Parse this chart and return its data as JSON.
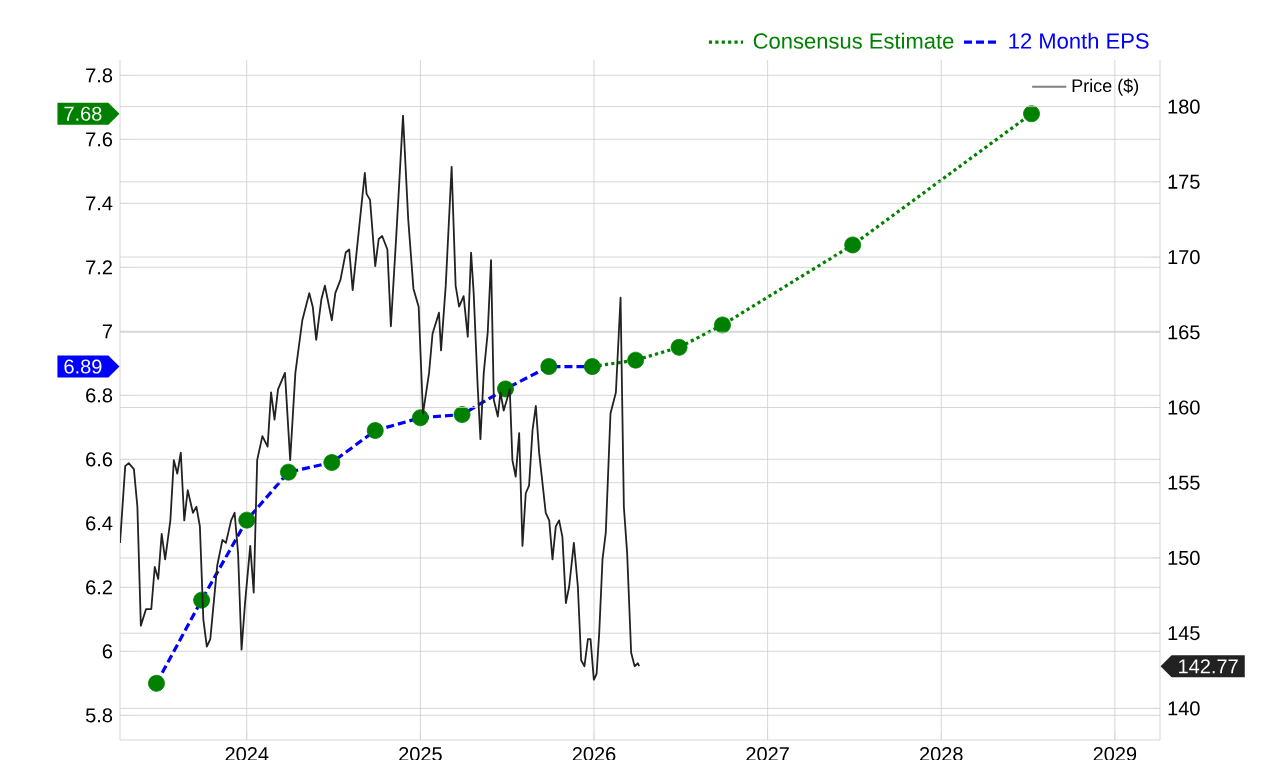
{
  "chart_data": {
    "type": "line",
    "xlim": [
      2023.27,
      2029.26
    ],
    "xticks": [
      2024,
      2025,
      2026,
      2027,
      2028,
      2029
    ],
    "ylim": [
      5.723,
      7.848
    ],
    "yticks": [
      5.8,
      6,
      6.2,
      6.4,
      6.6,
      6.8,
      7,
      7.2,
      7.4,
      7.6,
      7.8
    ],
    "y2lim": [
      137.9,
      183.1
    ],
    "y2ticks": [
      140,
      145,
      150,
      155,
      160,
      165,
      170,
      175,
      180
    ],
    "grid": true,
    "legend": "top right",
    "series": [
      {
        "name": "Consensus Estimate",
        "color": "#008000",
        "line_style": "dotted",
        "marker": "none",
        "x": [
          2025.99,
          2026.24,
          2026.49,
          2026.74,
          2027.49,
          2028.52
        ],
        "values": [
          6.89,
          6.91,
          6.95,
          7.02,
          7.27,
          7.68
        ]
      },
      {
        "name": "12 Month EPS",
        "color": "#0000ff",
        "line_style": "dashed",
        "marker": "none",
        "x": [
          2023.48,
          2023.74,
          2024.0,
          2024.24,
          2024.49,
          2024.74,
          2025.0,
          2025.24,
          2025.49,
          2025.74,
          2025.99
        ],
        "values": [
          5.9,
          6.16,
          6.41,
          6.56,
          6.59,
          6.69,
          6.73,
          6.74,
          6.82,
          6.89,
          6.89
        ]
      },
      {
        "type": "scatter",
        "color": "#008000",
        "marker": "circle",
        "x": [
          2023.48,
          2023.74,
          2024.0,
          2024.24,
          2024.49,
          2024.74,
          2025.0,
          2025.24,
          2025.49,
          2025.74,
          2025.99,
          2026.24,
          2026.49,
          2026.74,
          2027.49,
          2028.52
        ],
        "values": [
          5.9,
          6.16,
          6.41,
          6.56,
          6.59,
          6.69,
          6.73,
          6.74,
          6.82,
          6.89,
          6.89,
          6.91,
          6.95,
          7.02,
          7.27,
          7.68
        ]
      },
      {
        "name": "Price ($)",
        "axis": "y2",
        "color": "#222222",
        "line_style": "solid",
        "marker": "none",
        "x": [
          2023.27,
          2023.3,
          2023.32,
          2023.35,
          2023.37,
          2023.39,
          2023.42,
          2023.45,
          2023.47,
          2023.49,
          2023.51,
          2023.53,
          2023.56,
          2023.58,
          2023.6,
          2023.62,
          2023.64,
          2023.66,
          2023.69,
          2023.71,
          2023.73,
          2023.75,
          2023.77,
          2023.79,
          2023.83,
          2023.86,
          2023.88,
          2023.91,
          2023.93,
          2023.95,
          2023.97,
          2023.99,
          2024.02,
          2024.04,
          2024.06,
          2024.09,
          2024.12,
          2024.14,
          2024.16,
          2024.18,
          2024.22,
          2024.25,
          2024.28,
          2024.32,
          2024.36,
          2024.38,
          2024.4,
          2024.43,
          2024.45,
          2024.49,
          2024.51,
          2024.54,
          2024.57,
          2024.59,
          2024.61,
          2024.68,
          2024.69,
          2024.71,
          2024.74,
          2024.76,
          2024.78,
          2024.81,
          2024.83,
          2024.86,
          2024.9,
          2024.93,
          2024.96,
          2024.99,
          2025.015,
          2025.05,
          2025.07,
          2025.107,
          2025.119,
          2025.146,
          2025.18,
          2025.203,
          2025.223,
          2025.249,
          2025.273,
          2025.292,
          2025.307,
          2025.33,
          2025.346,
          2025.365,
          2025.388,
          2025.407,
          2025.423,
          2025.446,
          2025.461,
          2025.48,
          2025.515,
          2025.53,
          2025.549,
          2025.569,
          2025.588,
          2025.607,
          2025.626,
          2025.646,
          2025.665,
          2025.684,
          2025.722,
          2025.742,
          2025.761,
          2025.78,
          2025.799,
          2025.818,
          2025.838,
          2025.857,
          2025.884,
          2025.907,
          2025.926,
          2025.945,
          2025.965,
          2025.98,
          2025.999,
          2026.015,
          2026.03,
          2026.049,
          2026.068,
          2026.095,
          2026.126,
          2026.153,
          2026.172,
          2026.191,
          2026.214,
          2026.234,
          2026.253,
          2026.26
        ],
        "values": [
          151.0,
          156.1,
          156.3,
          155.9,
          153.4,
          145.5,
          146.6,
          146.6,
          149.4,
          148.6,
          151.6,
          149.9,
          152.5,
          156.5,
          155.6,
          157.0,
          152.5,
          154.5,
          153.0,
          153.4,
          152.1,
          145.9,
          144.1,
          144.6,
          149.5,
          151.2,
          151.0,
          152.5,
          153.0,
          150.3,
          143.9,
          147.0,
          150.8,
          147.7,
          156.5,
          158.1,
          157.4,
          161.0,
          159.2,
          161.2,
          162.3,
          156.5,
          162.3,
          165.8,
          167.6,
          166.7,
          164.5,
          167.2,
          168.1,
          165.8,
          167.6,
          168.5,
          170.3,
          170.5,
          167.8,
          175.6,
          174.2,
          173.8,
          169.4,
          171.2,
          171.4,
          170.5,
          165.4,
          171.2,
          179.4,
          172.5,
          167.9,
          166.7,
          159.6,
          162.3,
          164.9,
          166.3,
          163.8,
          168.1,
          176.0,
          168.1,
          166.7,
          167.4,
          164.7,
          170.3,
          167.6,
          161.4,
          157.9,
          162.3,
          165.0,
          169.8,
          160.5,
          159.4,
          161.0,
          159.8,
          161.2,
          156.5,
          155.4,
          158.3,
          150.8,
          154.3,
          154.8,
          158.5,
          160.1,
          157.0,
          153.0,
          152.5,
          149.9,
          152.1,
          152.5,
          151.4,
          147.0,
          148.1,
          151.0,
          148.1,
          143.2,
          142.8,
          144.6,
          144.6,
          141.9,
          142.3,
          145.0,
          149.9,
          151.7,
          159.6,
          161.0,
          167.3,
          153.4,
          150.3,
          143.7,
          142.8,
          143.0,
          142.8
        ]
      }
    ],
    "annotations": [
      "7.68",
      "6.89",
      "142.77"
    ]
  }
}
